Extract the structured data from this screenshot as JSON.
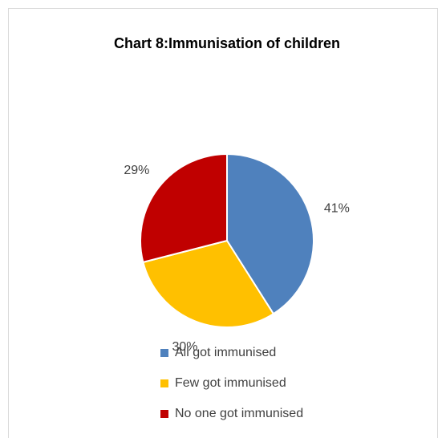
{
  "chart_data": {
    "type": "pie",
    "title": "Chart 8:Immunisation of children",
    "categories": [
      "All got immunised",
      "Few got immunised",
      "No one got immunised"
    ],
    "values": [
      41,
      30,
      29
    ],
    "value_labels": [
      "41%",
      "30%",
      "29%"
    ],
    "colors": [
      "#4f81bd",
      "#ffc000",
      "#c00000"
    ],
    "legend": "bottom"
  }
}
